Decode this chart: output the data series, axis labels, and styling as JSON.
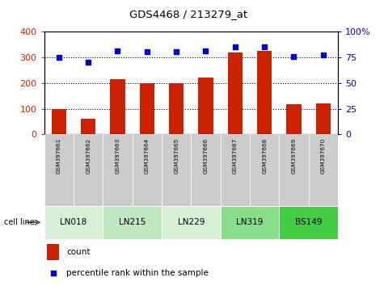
{
  "title": "GDS4468 / 213279_at",
  "samples": [
    "GSM397661",
    "GSM397662",
    "GSM397663",
    "GSM397664",
    "GSM397665",
    "GSM397666",
    "GSM397667",
    "GSM397668",
    "GSM397669",
    "GSM397670"
  ],
  "counts": [
    100,
    60,
    215,
    200,
    200,
    222,
    318,
    325,
    117,
    120
  ],
  "percentile_ranks": [
    75,
    70,
    81,
    80,
    80,
    81,
    85,
    85,
    76,
    77
  ],
  "cell_lines": [
    {
      "name": "LN018",
      "start": 0,
      "end": 1,
      "color": "#d8f0d8"
    },
    {
      "name": "LN215",
      "start": 2,
      "end": 3,
      "color": "#c0e8c0"
    },
    {
      "name": "LN229",
      "start": 4,
      "end": 5,
      "color": "#d8f0d8"
    },
    {
      "name": "LN319",
      "start": 6,
      "end": 7,
      "color": "#88dd88"
    },
    {
      "name": "BS149",
      "start": 8,
      "end": 9,
      "color": "#44cc44"
    }
  ],
  "yticks_left": [
    0,
    100,
    200,
    300,
    400
  ],
  "yticks_right": [
    0,
    25,
    50,
    75,
    100
  ],
  "ytick_right_labels": [
    "0",
    "25",
    "50",
    "75",
    "100%"
  ],
  "bar_color": "#cc2200",
  "dot_color": "#0000cc",
  "background_color": "#ffffff"
}
